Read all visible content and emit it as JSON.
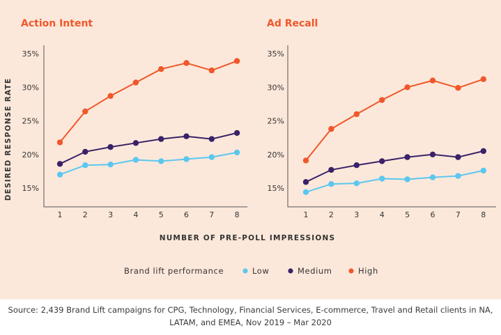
{
  "chart_data": [
    {
      "type": "line",
      "title": "Action Intent",
      "ylabel": "DESIRED RESPONSE RATE",
      "xlabel": "NUMBER OF PRE-POLL IMPRESSIONS",
      "x": [
        1,
        2,
        3,
        4,
        5,
        6,
        7,
        8
      ],
      "yticks": [
        "35%",
        "30%",
        "25%",
        "20%",
        "15%"
      ],
      "ytick_values": [
        35,
        30,
        25,
        20,
        15
      ],
      "ylim": [
        12,
        36
      ],
      "series": [
        {
          "name": "High",
          "color": "#f0572a",
          "values": [
            21.8,
            26.4,
            28.7,
            30.7,
            32.7,
            33.6,
            32.5,
            33.9
          ]
        },
        {
          "name": "Medium",
          "color": "#3a2268",
          "values": [
            18.6,
            20.4,
            21.1,
            21.7,
            22.3,
            22.7,
            22.3,
            23.2
          ]
        },
        {
          "name": "Low",
          "color": "#5bc7ef",
          "values": [
            17.0,
            18.4,
            18.5,
            19.2,
            19.0,
            19.3,
            19.6,
            20.3
          ]
        }
      ]
    },
    {
      "type": "line",
      "title": "Ad Recall",
      "x": [
        1,
        2,
        3,
        4,
        5,
        6,
        7,
        8
      ],
      "yticks": [
        "35%",
        "30%",
        "25%",
        "20%",
        "15%"
      ],
      "ytick_values": [
        35,
        30,
        25,
        20,
        15
      ],
      "ylim": [
        12,
        36
      ],
      "series": [
        {
          "name": "High",
          "color": "#f0572a",
          "values": [
            19.1,
            23.8,
            26.0,
            28.1,
            30.0,
            31.0,
            29.9,
            31.2
          ]
        },
        {
          "name": "Medium",
          "color": "#3a2268",
          "values": [
            15.9,
            17.7,
            18.4,
            19.0,
            19.6,
            20.0,
            19.6,
            20.5
          ]
        },
        {
          "name": "Low",
          "color": "#5bc7ef",
          "values": [
            14.4,
            15.6,
            15.7,
            16.4,
            16.3,
            16.6,
            16.8,
            17.6
          ]
        }
      ]
    }
  ],
  "legend": {
    "title": "Brand lift performance",
    "items": [
      {
        "label": "Low",
        "color": "#5bc7ef"
      },
      {
        "label": "Medium",
        "color": "#3a2268"
      },
      {
        "label": "High",
        "color": "#f0572a"
      }
    ]
  },
  "source": "Source: 2,439 Brand Lift campaigns for CPG, Technology, Financial Services, E-commerce, Travel and Retail clients in NA, LATAM, and EMEA, Nov 2019 – Mar 2020"
}
